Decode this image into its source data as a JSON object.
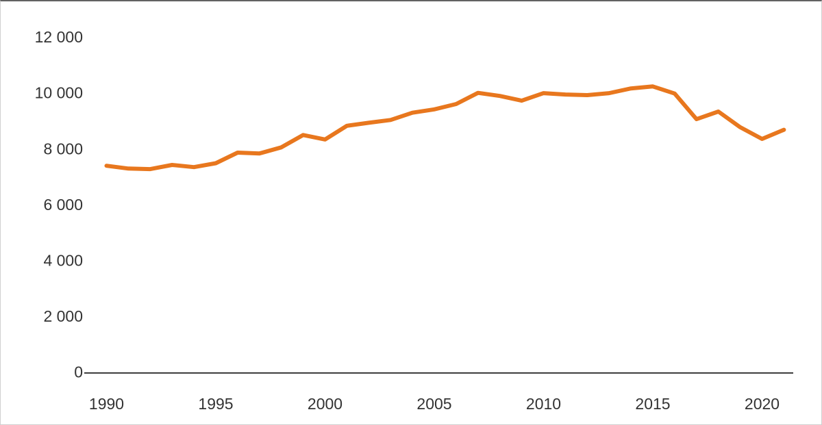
{
  "chart_data": {
    "type": "line",
    "title": "",
    "xlabel": "",
    "ylabel": "",
    "x": [
      1990,
      1991,
      1992,
      1993,
      1994,
      1995,
      1996,
      1997,
      1998,
      1999,
      2000,
      2001,
      2002,
      2003,
      2004,
      2005,
      2006,
      2007,
      2008,
      2009,
      2010,
      2011,
      2012,
      2013,
      2014,
      2015,
      2016,
      2017,
      2018,
      2019,
      2020,
      2021
    ],
    "series": [
      {
        "name": "value-line",
        "color": "#E8771E",
        "values": [
          7390,
          7290,
          7270,
          7420,
          7340,
          7480,
          7860,
          7830,
          8050,
          8490,
          8330,
          8820,
          8930,
          9030,
          9290,
          9410,
          9600,
          10000,
          9890,
          9720,
          9990,
          9940,
          9920,
          9990,
          10160,
          10230,
          9975,
          9060,
          9330,
          8770,
          8350,
          8680
        ]
      }
    ],
    "ylim": [
      0,
      12000
    ],
    "ytick_values": [
      0,
      2000,
      4000,
      6000,
      8000,
      10000,
      12000
    ],
    "ytick_labels": [
      "0",
      "2 000",
      "4 000",
      "6 000",
      "8 000",
      "10 000",
      "12 000"
    ],
    "xtick_years": [
      1990,
      1995,
      2000,
      2005,
      2010,
      2015,
      2020
    ],
    "xtick_labels": [
      "1990",
      "1995",
      "2000",
      "2005",
      "2010",
      "2015",
      "2020"
    ],
    "grid": false,
    "legend_position": "none",
    "colors": {
      "line": "#E8771E",
      "axis": "#3d3d3d",
      "text": "#333333",
      "background": "#ffffff",
      "frame_border": "#cfcfcf"
    }
  }
}
